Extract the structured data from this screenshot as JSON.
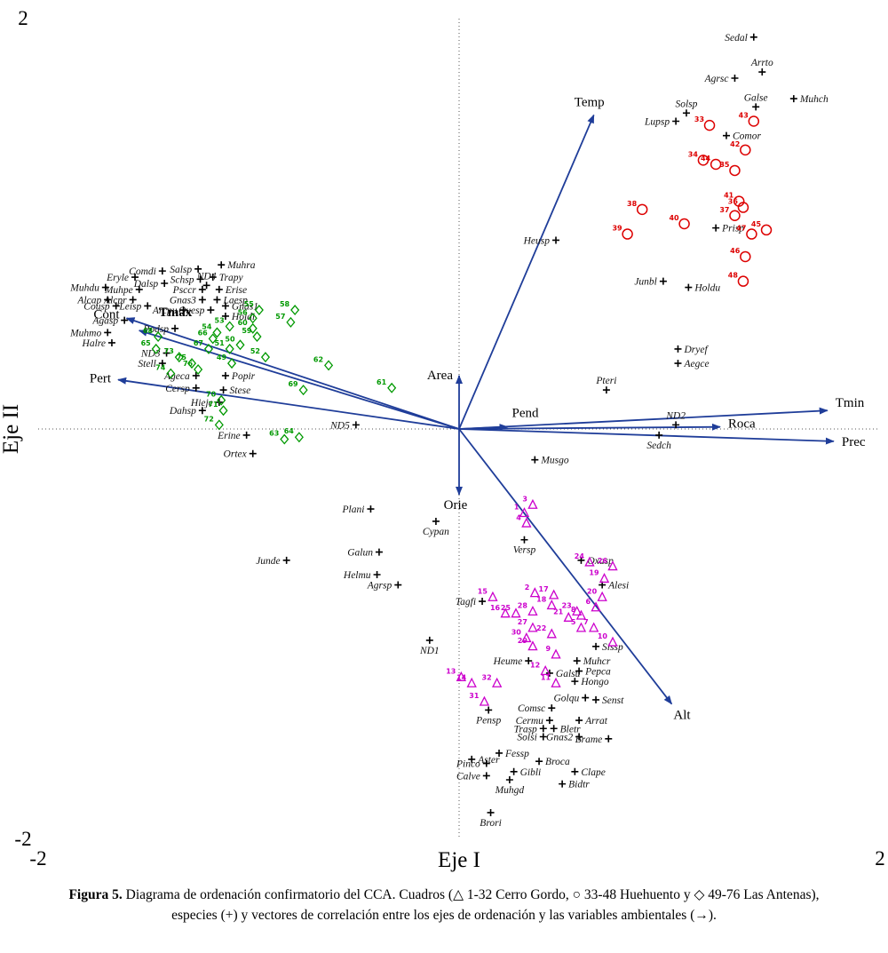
{
  "figure": {
    "caption_bold": "Figura 5.",
    "caption_rest": " Diagrama de ordenación confirmatorio del CCA. Cuadros (△ 1-32 Cerro Gordo, ○ 33-48 Huehuento y ◇ 49-76 Las Antenas), especies (+) y vectores de correlación entre los ejes de ordenación y las variables ambientales (→)."
  },
  "chart_data": {
    "type": "scatter",
    "title": "",
    "axis": {
      "x_label": "Eje I",
      "y_label": "Eje II",
      "xlim": [
        -2,
        2
      ],
      "ylim": [
        -2,
        2
      ],
      "x_ticks": [
        {
          "v": -2,
          "label": "-2"
        },
        {
          "v": 2,
          "label": "2"
        }
      ],
      "y_ticks": [
        {
          "v": 2,
          "label": "2"
        },
        {
          "v": -2,
          "label": "-2"
        }
      ]
    },
    "colors": {
      "vector": "#1f3d99",
      "cerro_gordo": "#cc00cc",
      "huehuento": "#dd0000",
      "las_antenas": "#009900",
      "species": "#000000"
    },
    "vectors": [
      {
        "name": "Temp",
        "x": 0.64,
        "y": 1.53,
        "anchor": "middle",
        "ldx": -5,
        "ldy": -10,
        "bold": false
      },
      {
        "name": "Tmin",
        "x": 1.75,
        "y": 0.09,
        "anchor": "start",
        "ldx": 9,
        "ldy": -4,
        "bold": false
      },
      {
        "name": "Prec",
        "x": 1.78,
        "y": -0.06,
        "anchor": "start",
        "ldx": 9,
        "ldy": 5,
        "bold": false
      },
      {
        "name": "Roca",
        "x": 1.24,
        "y": 0.01,
        "anchor": "start",
        "ldx": 9,
        "ldy": 1,
        "bold": false
      },
      {
        "name": "Pend",
        "x": 0.23,
        "y": 0.01,
        "anchor": "start",
        "ldx": 5,
        "ldy": -11,
        "bold": false
      },
      {
        "name": "Alt",
        "x": 1.01,
        "y": -1.34,
        "anchor": "start",
        "ldx": 2,
        "ldy": 17,
        "bold": false
      },
      {
        "name": "Orie",
        "x": 0.0,
        "y": -0.32,
        "anchor": "middle",
        "ldx": -4,
        "ldy": 16,
        "bold": false
      },
      {
        "name": "Area",
        "x": 0.0,
        "y": 0.26,
        "anchor": "end",
        "ldx": -7,
        "ldy": 4,
        "bold": false
      },
      {
        "name": "Cont",
        "x": -1.58,
        "y": 0.54,
        "anchor": "end",
        "ldx": -8,
        "ldy": 0,
        "bold": false
      },
      {
        "name": "Tmax",
        "x": -1.52,
        "y": 0.48,
        "anchor": "start",
        "ldx": 22,
        "ldy": -16,
        "bold": true
      },
      {
        "name": "Pert",
        "x": -1.62,
        "y": 0.24,
        "anchor": "end",
        "ldx": -8,
        "ldy": 3,
        "bold": false
      }
    ],
    "species": [
      {
        "n": "Sedal",
        "x": 1.4,
        "y": 1.91,
        "lp": "l"
      },
      {
        "n": "Agrsc",
        "x": 1.31,
        "y": 1.71,
        "lp": "l"
      },
      {
        "n": "Arrto",
        "x": 1.44,
        "y": 1.74,
        "lp": "a"
      },
      {
        "n": "Muhch",
        "x": 1.59,
        "y": 1.61,
        "lp": "r"
      },
      {
        "n": "Galse",
        "x": 1.41,
        "y": 1.57,
        "lp": "a"
      },
      {
        "n": "Solsp",
        "x": 1.08,
        "y": 1.54,
        "lp": "a"
      },
      {
        "n": "Lupsp",
        "x": 1.03,
        "y": 1.5,
        "lp": "l"
      },
      {
        "n": "Comor",
        "x": 1.27,
        "y": 1.43,
        "lp": "r"
      },
      {
        "n": "Heusp",
        "x": 0.46,
        "y": 0.92,
        "lp": "l"
      },
      {
        "n": "Prisp",
        "x": 1.22,
        "y": 0.98,
        "lp": "r"
      },
      {
        "n": "Junbl",
        "x": 0.97,
        "y": 0.72,
        "lp": "l"
      },
      {
        "n": "Holdu",
        "x": 1.09,
        "y": 0.69,
        "lp": "r"
      },
      {
        "n": "Dryef",
        "x": 1.04,
        "y": 0.39,
        "lp": "r"
      },
      {
        "n": "Aegce",
        "x": 1.04,
        "y": 0.32,
        "lp": "r"
      },
      {
        "n": "Pteri",
        "x": 0.7,
        "y": 0.19,
        "lp": "a"
      },
      {
        "n": "ND2",
        "x": 1.03,
        "y": 0.02,
        "lp": "a"
      },
      {
        "n": "Sedch",
        "x": 0.95,
        "y": -0.03,
        "lp": "b"
      },
      {
        "n": "Musgo",
        "x": 0.36,
        "y": -0.15,
        "lp": "r"
      },
      {
        "n": "ND5",
        "x": -0.49,
        "y": 0.02,
        "lp": "l"
      },
      {
        "n": "Muhra",
        "x": -1.13,
        "y": 0.8,
        "lp": "r"
      },
      {
        "n": "Salsp",
        "x": -1.24,
        "y": 0.78,
        "lp": "l"
      },
      {
        "n": "Comdi",
        "x": -1.41,
        "y": 0.77,
        "lp": "l"
      },
      {
        "n": "Eryle",
        "x": -1.54,
        "y": 0.74,
        "lp": "l"
      },
      {
        "n": "Trapy",
        "x": -1.17,
        "y": 0.74,
        "lp": "r"
      },
      {
        "n": "Schsp",
        "x": -1.23,
        "y": 0.73,
        "lp": "l"
      },
      {
        "n": "Dalsp",
        "x": -1.4,
        "y": 0.71,
        "lp": "l"
      },
      {
        "n": "ND4",
        "x": -1.2,
        "y": 0.7,
        "lp": "a"
      },
      {
        "n": "Muhdu",
        "x": -1.68,
        "y": 0.69,
        "lp": "l"
      },
      {
        "n": "Psccr",
        "x": -1.22,
        "y": 0.68,
        "lp": "l"
      },
      {
        "n": "Erise",
        "x": -1.14,
        "y": 0.68,
        "lp": "r"
      },
      {
        "n": "Muhpe",
        "x": -1.52,
        "y": 0.68,
        "lp": "l"
      },
      {
        "n": "Gnas3",
        "x": -1.22,
        "y": 0.63,
        "lp": "l"
      },
      {
        "n": "Laesp",
        "x": -1.15,
        "y": 0.63,
        "lp": "r"
      },
      {
        "n": "Alcap",
        "x": -1.67,
        "y": 0.63,
        "lp": "l"
      },
      {
        "n": "Alcpr",
        "x": -1.55,
        "y": 0.63,
        "lp": "l"
      },
      {
        "n": "Cousp",
        "x": -1.63,
        "y": 0.6,
        "lp": "l"
      },
      {
        "n": "Leisp",
        "x": -1.48,
        "y": 0.6,
        "lp": "l"
      },
      {
        "n": "Arcpu",
        "x": -1.31,
        "y": 0.58,
        "lp": "l"
      },
      {
        "n": "Quesp",
        "x": -1.18,
        "y": 0.58,
        "lp": "l"
      },
      {
        "n": "Gnas1",
        "x": -1.11,
        "y": 0.6,
        "lp": "r"
      },
      {
        "n": "Holdi",
        "x": -1.11,
        "y": 0.55,
        "lp": "r"
      },
      {
        "n": "Agasp",
        "x": -1.59,
        "y": 0.53,
        "lp": "l"
      },
      {
        "n": "Podsp",
        "x": -1.35,
        "y": 0.49,
        "lp": "l"
      },
      {
        "n": "Muhmo",
        "x": -1.67,
        "y": 0.47,
        "lp": "l"
      },
      {
        "n": "Halre",
        "x": -1.65,
        "y": 0.42,
        "lp": "l"
      },
      {
        "n": "ND3",
        "x": -1.39,
        "y": 0.37,
        "lp": "l"
      },
      {
        "n": "Stell",
        "x": -1.41,
        "y": 0.32,
        "lp": "l"
      },
      {
        "n": "Ageca",
        "x": -1.25,
        "y": 0.26,
        "lp": "l"
      },
      {
        "n": "Popir",
        "x": -1.11,
        "y": 0.26,
        "lp": "r"
      },
      {
        "n": "Cersp",
        "x": -1.25,
        "y": 0.2,
        "lp": "l"
      },
      {
        "n": "Stese",
        "x": -1.12,
        "y": 0.19,
        "lp": "r"
      },
      {
        "n": "Hieje",
        "x": -1.14,
        "y": 0.13,
        "lp": "l"
      },
      {
        "n": "Dahsp",
        "x": -1.22,
        "y": 0.09,
        "lp": "l"
      },
      {
        "n": "Erine",
        "x": -1.01,
        "y": -0.03,
        "lp": "l"
      },
      {
        "n": "Ortex",
        "x": -0.98,
        "y": -0.12,
        "lp": "l"
      },
      {
        "n": "Plani",
        "x": -0.42,
        "y": -0.39,
        "lp": "l"
      },
      {
        "n": "Cypan",
        "x": -0.11,
        "y": -0.45,
        "lp": "b"
      },
      {
        "n": "Junde",
        "x": -0.82,
        "y": -0.64,
        "lp": "l"
      },
      {
        "n": "Galun",
        "x": -0.38,
        "y": -0.6,
        "lp": "l"
      },
      {
        "n": "Helmu",
        "x": -0.39,
        "y": -0.71,
        "lp": "l"
      },
      {
        "n": "Agrsp",
        "x": -0.29,
        "y": -0.76,
        "lp": "l"
      },
      {
        "n": "Versp",
        "x": 0.31,
        "y": -0.54,
        "lp": "b"
      },
      {
        "n": "Oxasp",
        "x": 0.58,
        "y": -0.64,
        "lp": "r"
      },
      {
        "n": "Alesi",
        "x": 0.68,
        "y": -0.76,
        "lp": "r"
      },
      {
        "n": "Tagfi",
        "x": 0.11,
        "y": -0.84,
        "lp": "l"
      },
      {
        "n": "ND1",
        "x": -0.14,
        "y": -1.03,
        "lp": "b"
      },
      {
        "n": "Sissp",
        "x": 0.65,
        "y": -1.06,
        "lp": "r"
      },
      {
        "n": "Heume",
        "x": 0.33,
        "y": -1.13,
        "lp": "l"
      },
      {
        "n": "Muhcr",
        "x": 0.56,
        "y": -1.13,
        "lp": "r"
      },
      {
        "n": "Pepca",
        "x": 0.57,
        "y": -1.18,
        "lp": "r"
      },
      {
        "n": "Galsu",
        "x": 0.43,
        "y": -1.19,
        "lp": "r"
      },
      {
        "n": "Hongo",
        "x": 0.55,
        "y": -1.23,
        "lp": "r"
      },
      {
        "n": "Golqu",
        "x": 0.6,
        "y": -1.31,
        "lp": "l"
      },
      {
        "n": "Senst",
        "x": 0.65,
        "y": -1.32,
        "lp": "r"
      },
      {
        "n": "Comsc",
        "x": 0.44,
        "y": -1.36,
        "lp": "l"
      },
      {
        "n": "Cermu",
        "x": 0.43,
        "y": -1.42,
        "lp": "l"
      },
      {
        "n": "Arrat",
        "x": 0.57,
        "y": -1.42,
        "lp": "r"
      },
      {
        "n": "Pensp",
        "x": 0.14,
        "y": -1.37,
        "lp": "b"
      },
      {
        "n": "Trasp",
        "x": 0.4,
        "y": -1.46,
        "lp": "l"
      },
      {
        "n": "Bletr",
        "x": 0.45,
        "y": -1.46,
        "lp": "r"
      },
      {
        "n": "Solsi",
        "x": 0.4,
        "y": -1.5,
        "lp": "l"
      },
      {
        "n": "Gnas2",
        "x": 0.57,
        "y": -1.5,
        "lp": "l"
      },
      {
        "n": "Brame",
        "x": 0.71,
        "y": -1.51,
        "lp": "l"
      },
      {
        "n": "Fessp",
        "x": 0.19,
        "y": -1.58,
        "lp": "r"
      },
      {
        "n": "Aster",
        "x": 0.06,
        "y": -1.61,
        "lp": "r"
      },
      {
        "n": "Broca",
        "x": 0.38,
        "y": -1.62,
        "lp": "r"
      },
      {
        "n": "Pinco",
        "x": 0.13,
        "y": -1.63,
        "lp": "l"
      },
      {
        "n": "Gibli",
        "x": 0.26,
        "y": -1.67,
        "lp": "r"
      },
      {
        "n": "Clape",
        "x": 0.55,
        "y": -1.67,
        "lp": "r"
      },
      {
        "n": "Calve",
        "x": 0.13,
        "y": -1.69,
        "lp": "l"
      },
      {
        "n": "Muhgd",
        "x": 0.24,
        "y": -1.71,
        "lp": "b"
      },
      {
        "n": "Bidtr",
        "x": 0.49,
        "y": -1.73,
        "lp": "r"
      },
      {
        "n": "Brori",
        "x": 0.15,
        "y": -1.87,
        "lp": "b"
      }
    ],
    "sites": [
      {
        "id": "cerro-gordo",
        "name": "Cerro Gordo",
        "marker": "triangle",
        "color": "#cc00cc",
        "range": "1-32",
        "points": [
          {
            "id": 1,
            "x": 0.31,
            "y": -0.41
          },
          {
            "id": 2,
            "x": 0.36,
            "y": -0.8
          },
          {
            "id": 3,
            "x": 0.35,
            "y": -0.37
          },
          {
            "id": 4,
            "x": 0.32,
            "y": -0.46
          },
          {
            "id": 5,
            "x": 0.58,
            "y": -0.97
          },
          {
            "id": 6,
            "x": 0.65,
            "y": -0.87
          },
          {
            "id": 7,
            "x": 0.64,
            "y": -0.97
          },
          {
            "id": 8,
            "x": 0.58,
            "y": -0.91
          },
          {
            "id": 9,
            "x": 0.46,
            "y": -1.1
          },
          {
            "id": 10,
            "x": 0.73,
            "y": -1.04
          },
          {
            "id": 11,
            "x": 0.46,
            "y": -1.24
          },
          {
            "id": 12,
            "x": 0.41,
            "y": -1.18
          },
          {
            "id": 13,
            "x": 0.01,
            "y": -1.21
          },
          {
            "id": 14,
            "x": 0.06,
            "y": -1.24
          },
          {
            "id": 15,
            "x": 0.16,
            "y": -0.82
          },
          {
            "id": 16,
            "x": 0.22,
            "y": -0.9
          },
          {
            "id": 17,
            "x": 0.45,
            "y": -0.81
          },
          {
            "id": 18,
            "x": 0.44,
            "y": -0.86
          },
          {
            "id": 19,
            "x": 0.69,
            "y": -0.73
          },
          {
            "id": 20,
            "x": 0.68,
            "y": -0.82
          },
          {
            "id": 21,
            "x": 0.52,
            "y": -0.92
          },
          {
            "id": 22,
            "x": 0.44,
            "y": -1.0
          },
          {
            "id": 23,
            "x": 0.56,
            "y": -0.89
          },
          {
            "id": 24,
            "x": 0.62,
            "y": -0.65
          },
          {
            "id": 25,
            "x": 0.27,
            "y": -0.9
          },
          {
            "id": 26,
            "x": 0.73,
            "y": -0.67
          },
          {
            "id": 27,
            "x": 0.35,
            "y": -0.97
          },
          {
            "id": 28,
            "x": 0.35,
            "y": -0.89
          },
          {
            "id": 29,
            "x": 0.35,
            "y": -1.06
          },
          {
            "id": 30,
            "x": 0.32,
            "y": -1.02
          },
          {
            "id": 31,
            "x": 0.12,
            "y": -1.33
          },
          {
            "id": 32,
            "x": 0.18,
            "y": -1.24
          }
        ]
      },
      {
        "id": "huehuento",
        "name": "Huehuento",
        "marker": "circle",
        "color": "#dd0000",
        "range": "33-48",
        "points": [
          {
            "id": 33,
            "x": 1.19,
            "y": 1.48
          },
          {
            "id": 34,
            "x": 1.16,
            "y": 1.31
          },
          {
            "id": 35,
            "x": 1.31,
            "y": 1.26
          },
          {
            "id": 36,
            "x": 1.35,
            "y": 1.08
          },
          {
            "id": 37,
            "x": 1.31,
            "y": 1.04
          },
          {
            "id": 38,
            "x": 0.87,
            "y": 1.07
          },
          {
            "id": 39,
            "x": 0.8,
            "y": 0.95
          },
          {
            "id": 40,
            "x": 1.07,
            "y": 1.0
          },
          {
            "id": 41,
            "x": 1.33,
            "y": 1.11
          },
          {
            "id": 42,
            "x": 1.36,
            "y": 1.36
          },
          {
            "id": 43,
            "x": 1.4,
            "y": 1.5
          },
          {
            "id": 44,
            "x": 1.22,
            "y": 1.29
          },
          {
            "id": 45,
            "x": 1.46,
            "y": 0.97
          },
          {
            "id": 46,
            "x": 1.36,
            "y": 0.84
          },
          {
            "id": 47,
            "x": 1.39,
            "y": 0.95
          },
          {
            "id": 48,
            "x": 1.35,
            "y": 0.72
          }
        ]
      },
      {
        "id": "las-antenas",
        "name": "Las Antenas",
        "marker": "diamond",
        "color": "#009900",
        "range": "49-76",
        "points": [
          {
            "id": 49,
            "x": -1.08,
            "y": 0.32
          },
          {
            "id": 50,
            "x": -1.04,
            "y": 0.41
          },
          {
            "id": 51,
            "x": -1.09,
            "y": 0.39
          },
          {
            "id": 52,
            "x": -0.92,
            "y": 0.35
          },
          {
            "id": 53,
            "x": -1.09,
            "y": 0.5
          },
          {
            "id": 54,
            "x": -1.15,
            "y": 0.47
          },
          {
            "id": 55,
            "x": -0.95,
            "y": 0.58
          },
          {
            "id": 56,
            "x": -0.98,
            "y": 0.54
          },
          {
            "id": 57,
            "x": -0.8,
            "y": 0.52
          },
          {
            "id": 58,
            "x": -0.78,
            "y": 0.58
          },
          {
            "id": 59,
            "x": -0.96,
            "y": 0.45
          },
          {
            "id": 60,
            "x": -0.98,
            "y": 0.49
          },
          {
            "id": 61,
            "x": -0.32,
            "y": 0.2
          },
          {
            "id": 62,
            "x": -0.62,
            "y": 0.31
          },
          {
            "id": 63,
            "x": -0.83,
            "y": -0.05
          },
          {
            "id": 64,
            "x": -0.76,
            "y": -0.04
          },
          {
            "id": 65,
            "x": -1.44,
            "y": 0.39
          },
          {
            "id": 66,
            "x": -1.17,
            "y": 0.44
          },
          {
            "id": 67,
            "x": -1.19,
            "y": 0.39
          },
          {
            "id": 68,
            "x": -1.43,
            "y": 0.45
          },
          {
            "id": 69,
            "x": -0.74,
            "y": 0.19
          },
          {
            "id": 70,
            "x": -1.13,
            "y": 0.14
          },
          {
            "id": 71,
            "x": -1.12,
            "y": 0.09
          },
          {
            "id": 72,
            "x": -1.14,
            "y": 0.02
          },
          {
            "id": 73,
            "x": -1.33,
            "y": 0.35
          },
          {
            "id": 74,
            "x": -1.37,
            "y": 0.27
          },
          {
            "id": 75,
            "x": -1.27,
            "y": 0.32
          },
          {
            "id": 76,
            "x": -1.24,
            "y": 0.29
          }
        ]
      }
    ]
  }
}
